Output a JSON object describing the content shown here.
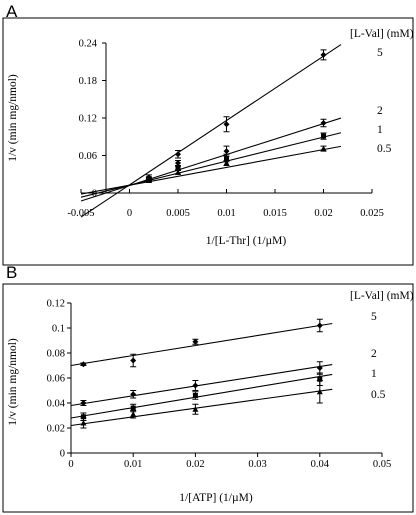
{
  "chart_data": [
    {
      "panel": "A",
      "type": "line",
      "xlabel": "1/[L-Thr] (1/µM)",
      "ylabel": "1/v  (min mg/nmol)",
      "xlim": [
        -0.005,
        0.025
      ],
      "ylim": [
        0,
        0.24
      ],
      "xticks": [
        "-0.005",
        "0",
        "0.005",
        "0.01",
        "0.015",
        "0.02",
        "0.025"
      ],
      "yticks": [
        "0",
        "0.06",
        "0.12",
        "0.18",
        "0.24"
      ],
      "xtick_values": [
        -0.005,
        0,
        0.005,
        0.01,
        0.015,
        0.02,
        0.025
      ],
      "ytick_values": [
        0,
        0.06,
        0.12,
        0.18,
        0.24
      ],
      "legend_title": "[L-Val]  (mM)",
      "series": [
        {
          "name": "5",
          "x": [
            0.002,
            0.005,
            0.01,
            0.02
          ],
          "y": [
            0.025,
            0.062,
            0.11,
            0.221
          ],
          "err": [
            0.004,
            0.006,
            0.012,
            0.008
          ],
          "fit": [
            0.013,
            10.3
          ],
          "marker": "diamond"
        },
        {
          "name": "2",
          "x": [
            0.002,
            0.005,
            0.01,
            0.02
          ],
          "y": [
            0.023,
            0.048,
            0.067,
            0.112
          ],
          "err": [
            0.003,
            0.004,
            0.008,
            0.006
          ],
          "fit": [
            0.012,
            4.95
          ],
          "marker": "diamond"
        },
        {
          "name": "1",
          "x": [
            0.002,
            0.005,
            0.01,
            0.02
          ],
          "y": [
            0.021,
            0.04,
            0.056,
            0.091
          ],
          "err": [
            0.003,
            0.003,
            0.006,
            0.005
          ],
          "fit": [
            0.0125,
            3.85
          ],
          "marker": "square"
        },
        {
          "name": "0.5",
          "x": [
            0.002,
            0.005,
            0.01,
            0.02
          ],
          "y": [
            0.02,
            0.033,
            0.048,
            0.071
          ],
          "err": [
            0.002,
            0.003,
            0.004,
            0.004
          ],
          "fit": [
            0.0125,
            2.85
          ],
          "marker": "triangle"
        }
      ]
    },
    {
      "panel": "B",
      "type": "line",
      "xlabel": "1/[ATP] (1/µM)",
      "ylabel": "1/v  (min mg/nmol)",
      "xlim": [
        0,
        0.05
      ],
      "ylim": [
        0,
        0.12
      ],
      "xticks": [
        "0",
        "0.01",
        "0.02",
        "0.03",
        "0.04",
        "0.05"
      ],
      "yticks": [
        "0",
        "0.02",
        "0.04",
        "0.06",
        "0.08",
        "0.1",
        "0.12"
      ],
      "xtick_values": [
        0,
        0.01,
        0.02,
        0.03,
        0.04,
        0.05
      ],
      "ytick_values": [
        0,
        0.02,
        0.04,
        0.06,
        0.08,
        0.1,
        0.12
      ],
      "legend_title": "[L-Val]  (mM)",
      "series": [
        {
          "name": "5",
          "x": [
            0.002,
            0.01,
            0.02,
            0.04
          ],
          "y": [
            0.071,
            0.074,
            0.089,
            0.102
          ],
          "err": [
            0.001,
            0.005,
            0.002,
            0.005
          ],
          "fit": [
            0.07,
            0.8
          ],
          "marker": "diamond"
        },
        {
          "name": "2",
          "x": [
            0.002,
            0.01,
            0.02,
            0.04
          ],
          "y": [
            0.04,
            0.047,
            0.054,
            0.068
          ],
          "err": [
            0.002,
            0.003,
            0.004,
            0.005
          ],
          "fit": [
            0.038,
            0.78
          ],
          "marker": "diamond"
        },
        {
          "name": "1",
          "x": [
            0.002,
            0.01,
            0.02,
            0.04
          ],
          "y": [
            0.029,
            0.036,
            0.046,
            0.059
          ],
          "err": [
            0.003,
            0.003,
            0.003,
            0.005
          ],
          "fit": [
            0.028,
            0.83
          ],
          "marker": "square"
        },
        {
          "name": "0.5",
          "x": [
            0.002,
            0.01,
            0.02,
            0.04
          ],
          "y": [
            0.024,
            0.031,
            0.035,
            0.049
          ],
          "err": [
            0.004,
            0.003,
            0.004,
            0.009
          ],
          "fit": [
            0.022,
            0.69
          ],
          "marker": "triangle"
        }
      ]
    }
  ]
}
